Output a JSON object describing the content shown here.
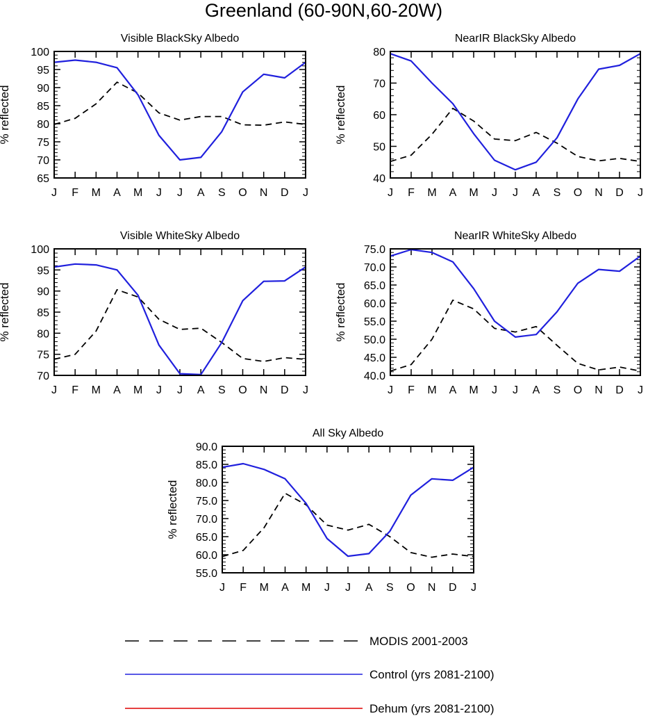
{
  "figure_title": "Greenland (60-90N,60-20W)",
  "legend": [
    {
      "label": "MODIS 2001-2003",
      "color": "#000000",
      "dash": true
    },
    {
      "label": "Control (yrs 2081-2100)",
      "color": "#2020dd",
      "dash": false
    },
    {
      "label": "Dehum (yrs 2081-2100)",
      "color": "#dd0000",
      "dash": false
    }
  ],
  "chart_data": [
    {
      "type": "line",
      "title": "Visible BlackSky Albedo",
      "ylabel": "% reflected",
      "xlabel": "",
      "categories": [
        "J",
        "F",
        "M",
        "A",
        "M",
        "J",
        "J",
        "A",
        "S",
        "O",
        "N",
        "D",
        "J"
      ],
      "ylim": [
        65,
        100
      ],
      "yticks": [
        "65",
        "70",
        "75",
        "80",
        "85",
        "90",
        "95",
        "100"
      ],
      "series": [
        {
          "name": "MODIS 2001-2003",
          "values": [
            79.8,
            81.5,
            85.5,
            91.5,
            88.5,
            83.0,
            81.0,
            82.0,
            82.0,
            79.7,
            79.6,
            80.5,
            79.8
          ]
        },
        {
          "name": "Control (yrs 2081-2100)",
          "values": [
            97.0,
            97.6,
            97.0,
            95.5,
            88.0,
            76.8,
            70.0,
            70.7,
            77.8,
            88.8,
            93.7,
            92.7,
            97.0
          ]
        }
      ]
    },
    {
      "type": "line",
      "title": "NearIR BlackSky Albedo",
      "ylabel": "% reflected",
      "xlabel": "",
      "categories": [
        "J",
        "F",
        "M",
        "A",
        "M",
        "J",
        "J",
        "A",
        "S",
        "O",
        "N",
        "D",
        "J"
      ],
      "ylim": [
        40,
        80
      ],
      "yticks": [
        "40",
        "50",
        "60",
        "70",
        "80"
      ],
      "series": [
        {
          "name": "MODIS 2001-2003",
          "values": [
            45.2,
            47.2,
            53.8,
            62.0,
            58.0,
            52.3,
            51.8,
            54.4,
            51.0,
            46.8,
            45.4,
            46.2,
            45.2
          ]
        },
        {
          "name": "Control (yrs 2081-2100)",
          "values": [
            79.3,
            77.0,
            70.0,
            63.5,
            54.0,
            45.6,
            42.6,
            45.0,
            52.7,
            65.0,
            74.4,
            75.6,
            79.3
          ]
        }
      ]
    },
    {
      "type": "line",
      "title": "Visible WhiteSky Albedo",
      "ylabel": "% reflected",
      "xlabel": "",
      "categories": [
        "J",
        "F",
        "M",
        "A",
        "M",
        "J",
        "J",
        "A",
        "S",
        "O",
        "N",
        "D",
        "J"
      ],
      "ylim": [
        70,
        100
      ],
      "yticks": [
        "70",
        "75",
        "80",
        "85",
        "90",
        "95",
        "100"
      ],
      "series": [
        {
          "name": "MODIS 2001-2003",
          "values": [
            73.8,
            75.0,
            80.5,
            90.3,
            88.6,
            83.3,
            80.9,
            81.2,
            77.8,
            74.0,
            73.3,
            74.2,
            73.8
          ]
        },
        {
          "name": "Control (yrs 2081-2100)",
          "values": [
            95.7,
            96.4,
            96.2,
            95.0,
            89.0,
            77.2,
            70.4,
            70.2,
            77.8,
            87.7,
            92.3,
            92.4,
            95.7
          ]
        }
      ]
    },
    {
      "type": "line",
      "title": "NearIR WhiteSky Albedo",
      "ylabel": "% reflected",
      "xlabel": "",
      "categories": [
        "J",
        "F",
        "M",
        "A",
        "M",
        "J",
        "J",
        "A",
        "S",
        "O",
        "N",
        "D",
        "J"
      ],
      "ylim": [
        40,
        75
      ],
      "yticks": [
        "40.0",
        "45.0",
        "50.0",
        "55.0",
        "60.0",
        "65.0",
        "70.0",
        "75.0"
      ],
      "series": [
        {
          "name": "MODIS 2001-2003",
          "values": [
            41.2,
            43.0,
            50.0,
            60.8,
            58.4,
            53.0,
            52.0,
            53.5,
            48.3,
            43.3,
            41.5,
            42.3,
            41.2
          ]
        },
        {
          "name": "Control (yrs 2081-2100)",
          "values": [
            73.0,
            74.8,
            74.0,
            71.4,
            64.0,
            55.0,
            50.6,
            51.3,
            57.6,
            65.5,
            69.3,
            68.8,
            73.0
          ]
        }
      ]
    },
    {
      "type": "line",
      "title": "All Sky Albedo",
      "ylabel": "% reflected",
      "xlabel": "",
      "categories": [
        "J",
        "F",
        "M",
        "A",
        "M",
        "J",
        "J",
        "A",
        "S",
        "O",
        "N",
        "D",
        "J"
      ],
      "ylim": [
        55,
        90
      ],
      "yticks": [
        "55.0",
        "60.0",
        "65.0",
        "70.0",
        "75.0",
        "80.0",
        "85.0",
        "90.0"
      ],
      "series": [
        {
          "name": "MODIS 2001-2003",
          "values": [
            59.5,
            61.2,
            67.5,
            77.0,
            73.8,
            68.2,
            66.8,
            68.4,
            65.0,
            60.6,
            59.3,
            60.2,
            59.5
          ]
        },
        {
          "name": "Control (yrs 2081-2100)",
          "values": [
            84.2,
            85.2,
            83.6,
            81.0,
            74.2,
            64.5,
            59.6,
            60.3,
            66.5,
            76.5,
            81.0,
            80.6,
            84.2
          ]
        }
      ]
    }
  ]
}
